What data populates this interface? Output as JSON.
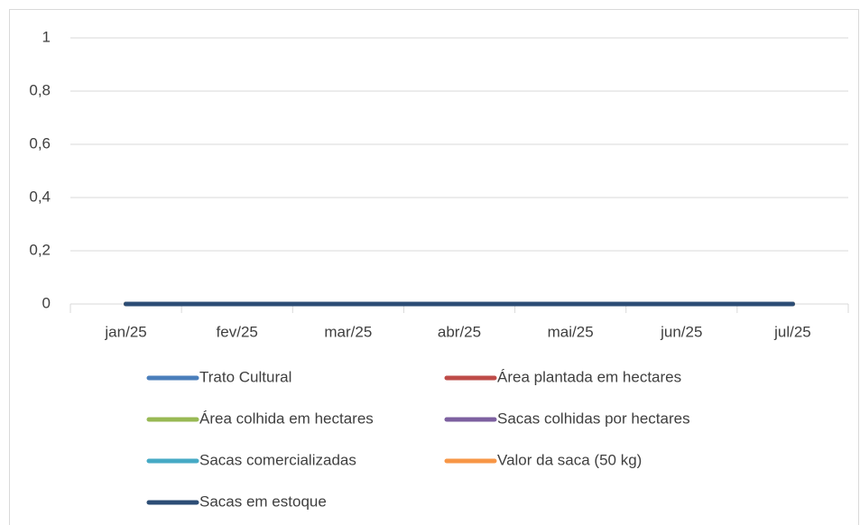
{
  "chart_data": {
    "type": "line",
    "categories": [
      "jan/25",
      "fev/25",
      "mar/25",
      "abr/25",
      "mai/25",
      "jun/25",
      "jul/25"
    ],
    "series": [
      {
        "name": "Trato Cultural",
        "color": "#4a7ebb",
        "values": [
          0,
          0,
          0,
          0,
          0,
          0,
          0
        ]
      },
      {
        "name": "Área plantada em hectares",
        "color": "#be4b48",
        "values": [
          0,
          0,
          0,
          0,
          0,
          0,
          0
        ]
      },
      {
        "name": "Área colhida em hectares",
        "color": "#98b954",
        "values": [
          0,
          0,
          0,
          0,
          0,
          0,
          0
        ]
      },
      {
        "name": "Sacas colhidas por hectares",
        "color": "#7d60a0",
        "values": [
          0,
          0,
          0,
          0,
          0,
          0,
          0
        ]
      },
      {
        "name": "Sacas comercializadas",
        "color": "#46aac5",
        "values": [
          0,
          0,
          0,
          0,
          0,
          0,
          0
        ]
      },
      {
        "name": "Valor da saca (50 kg)",
        "color": "#f79646",
        "values": [
          0,
          0,
          0,
          0,
          0,
          0,
          0
        ]
      },
      {
        "name": "Sacas em estoque",
        "color": "#2c4d75",
        "values": [
          0,
          0,
          0,
          0,
          0,
          0,
          0
        ]
      }
    ],
    "ylim": [
      0,
      1
    ],
    "yticks": [
      0,
      {
        "value": 0.2,
        "label": "0,2"
      },
      {
        "value": 0.4,
        "label": "0,4"
      },
      {
        "value": 0.6,
        "label": "0,6"
      },
      {
        "value": 0.8,
        "label": "0,8"
      },
      1
    ],
    "grid": true,
    "legend": "bottom"
  }
}
